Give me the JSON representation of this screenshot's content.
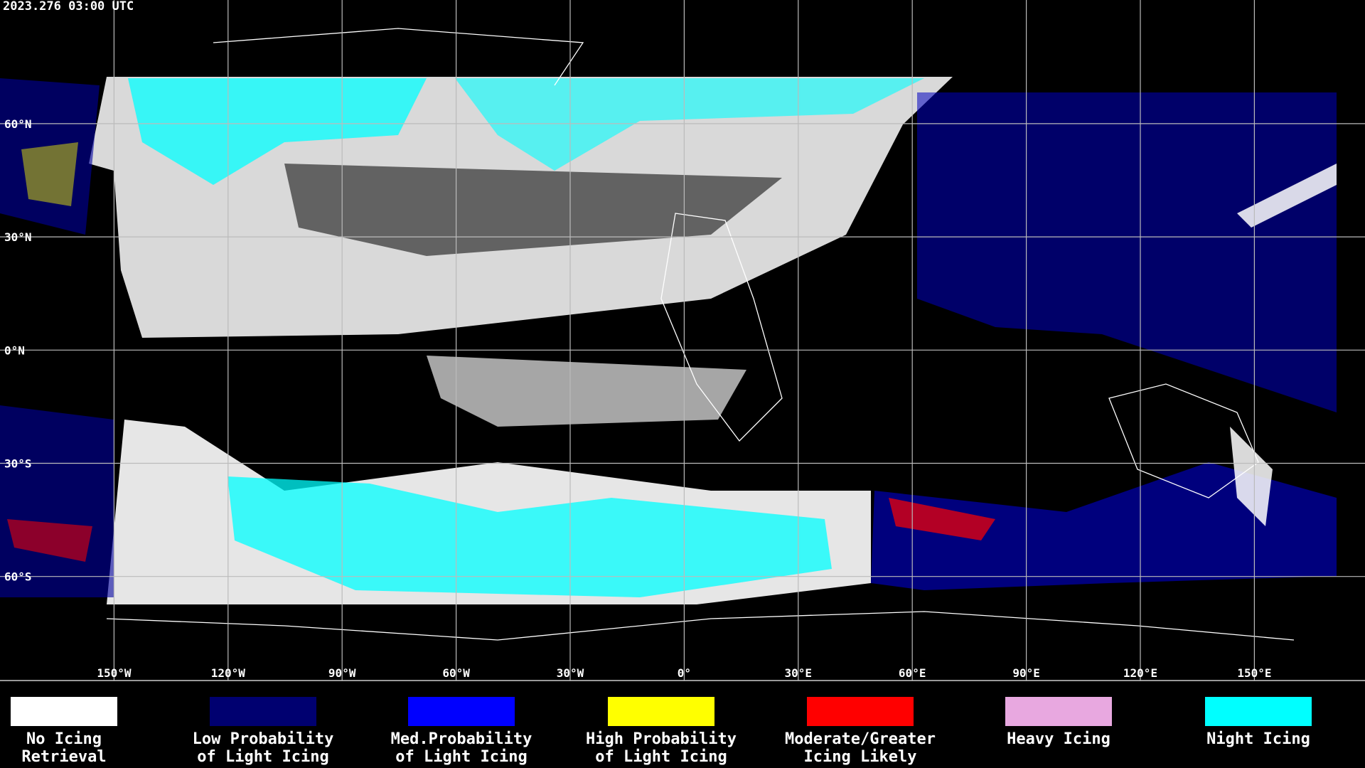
{
  "header": {
    "timestamp": "2023.276 03:00 UTC"
  },
  "map": {
    "lat_labels": [
      "60°N",
      "30°N",
      "0°N",
      "30°S",
      "60°S"
    ],
    "lon_labels": [
      "150°W",
      "120°W",
      "90°W",
      "60°W",
      "30°W",
      "0°",
      "30°E",
      "60°E",
      "90°E",
      "120°E",
      "150°E"
    ]
  },
  "legend": {
    "items": [
      {
        "lines": [
          "No Icing",
          "Retrieval"
        ],
        "color": "#ffffff"
      },
      {
        "lines": [
          "Low Probability",
          "of Light Icing"
        ],
        "color": "#000070"
      },
      {
        "lines": [
          "Med.Probability",
          "of Light Icing"
        ],
        "color": "#0000ff"
      },
      {
        "lines": [
          "High Probability",
          "of Light Icing"
        ],
        "color": "#ffff00"
      },
      {
        "lines": [
          "Moderate/Greater",
          "Icing Likely"
        ],
        "color": "#ff0000"
      },
      {
        "lines": [
          "Heavy Icing"
        ],
        "color": "#e8a8e0"
      },
      {
        "lines": [
          "Night Icing"
        ],
        "color": "#00ffff"
      }
    ]
  }
}
